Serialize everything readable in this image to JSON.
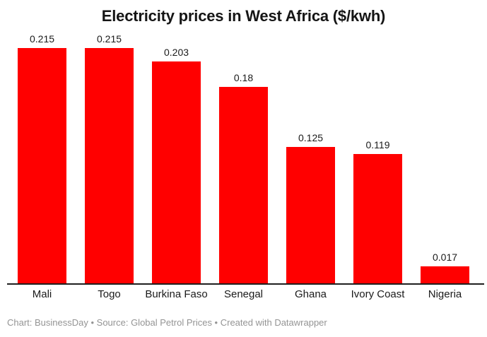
{
  "chart_data": {
    "type": "bar",
    "title": "Electricity prices in West Africa ($/kwh)",
    "categories": [
      "Mali",
      "Togo",
      "Burkina Faso",
      "Senegal",
      "Ghana",
      "Ivory Coast",
      "Nigeria"
    ],
    "values": [
      0.215,
      0.215,
      0.203,
      0.18,
      0.125,
      0.119,
      0.017
    ],
    "value_labels": [
      "0.215",
      "0.215",
      "0.203",
      "0.18",
      "0.125",
      "0.119",
      "0.017"
    ],
    "xlabel": "",
    "ylabel": "",
    "ylim": [
      0,
      0.215
    ],
    "grid": false,
    "legend": false,
    "bar_color": "#ff0000",
    "axis_color": "#1f1f1f",
    "label_color": "#1a1a1a"
  },
  "footer": {
    "text": "Chart: BusinessDay • Source: Global Petrol Prices • Created with Datawrapper"
  }
}
